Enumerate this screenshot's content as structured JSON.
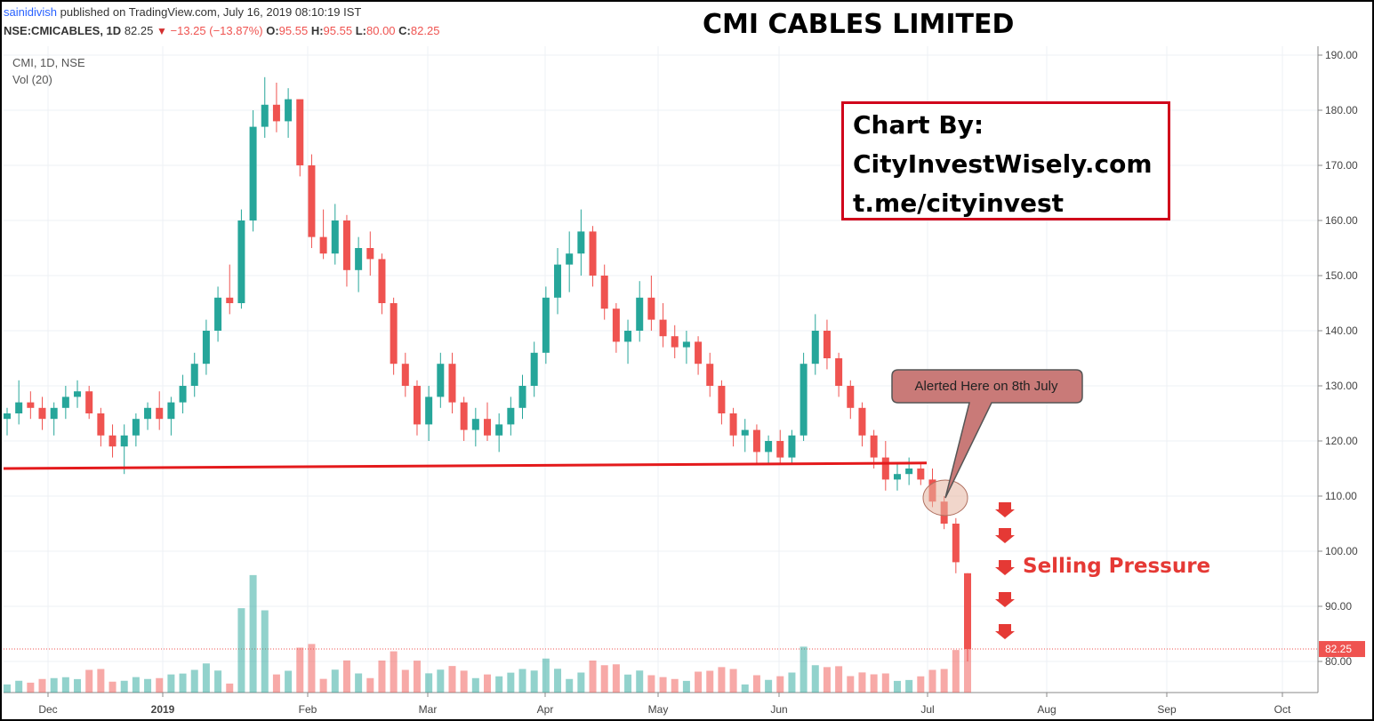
{
  "header": {
    "user": "sainidivish",
    "published_text": "published on TradingView.com, July 16, 2019 08:10:19 IST",
    "symbol_line": "NSE:CMICABLES, 1D",
    "last": "82.25",
    "change": "−13.25 (−13.87%)",
    "o_label": "O:",
    "o_value": "95.55",
    "h_label": "H:",
    "h_value": "95.55",
    "l_label": "L:",
    "l_value": "80.00",
    "c_label": "C:",
    "c_value": "82.25"
  },
  "title": "CMI CABLES LIMITED",
  "legend": {
    "series": "CMI, 1D, NSE",
    "volume": "Vol (20)"
  },
  "credit": {
    "line1": "Chart By:",
    "line2": "CityInvestWisely.com",
    "line3": "t.me/cityinvest"
  },
  "callout": {
    "text": "Alerted Here on 8th July"
  },
  "annotation": {
    "selling": "Selling Pressure"
  },
  "colors": {
    "up": "#26a69a",
    "down": "#ef5350",
    "support_line": "#e41a1c",
    "annotation": "#e53935"
  },
  "chart_data": {
    "type": "candlestick",
    "title": "CMI CABLES LIMITED",
    "y_axis": {
      "side": "right",
      "range": [
        77,
        191
      ],
      "ticks": [
        "80.00",
        "90.00",
        "100.00",
        "110.00",
        "120.00",
        "130.00",
        "140.00",
        "150.00",
        "160.00",
        "170.00",
        "180.00",
        "190.00"
      ]
    },
    "x_axis": {
      "ticks": [
        "Dec",
        "2019",
        "Feb",
        "Mar",
        "Apr",
        "May",
        "Jun",
        "Jul",
        "Aug",
        "Sep",
        "Oct"
      ]
    },
    "last_price_label": "82.25",
    "support_line": {
      "start_value": 115,
      "end_value": 116
    },
    "ohlc_approx": [
      [
        124,
        126,
        121,
        125
      ],
      [
        125,
        131,
        123,
        127
      ],
      [
        127,
        129,
        124,
        126
      ],
      [
        126,
        128,
        122,
        124
      ],
      [
        124,
        127,
        121,
        126
      ],
      [
        126,
        130,
        124,
        128
      ],
      [
        128,
        131,
        126,
        129
      ],
      [
        129,
        130,
        124,
        125
      ],
      [
        125,
        126,
        119,
        121
      ],
      [
        121,
        123,
        117,
        119
      ],
      [
        119,
        123,
        114,
        121
      ],
      [
        121,
        125,
        119,
        124
      ],
      [
        124,
        127,
        122,
        126
      ],
      [
        126,
        129,
        122,
        124
      ],
      [
        124,
        128,
        121,
        127
      ],
      [
        127,
        132,
        125,
        130
      ],
      [
        130,
        136,
        128,
        134
      ],
      [
        134,
        142,
        132,
        140
      ],
      [
        140,
        148,
        138,
        146
      ],
      [
        146,
        152,
        143,
        145
      ],
      [
        145,
        162,
        144,
        160
      ],
      [
        160,
        180,
        158,
        177
      ],
      [
        177,
        186,
        175,
        181
      ],
      [
        181,
        185,
        176,
        178
      ],
      [
        178,
        184,
        175,
        182
      ],
      [
        182,
        181,
        168,
        170
      ],
      [
        170,
        172,
        155,
        157
      ],
      [
        157,
        162,
        153,
        154
      ],
      [
        154,
        163,
        152,
        160
      ],
      [
        160,
        161,
        148,
        151
      ],
      [
        151,
        157,
        147,
        155
      ],
      [
        155,
        158,
        150,
        153
      ],
      [
        153,
        154,
        143,
        145
      ],
      [
        145,
        146,
        132,
        134
      ],
      [
        134,
        136,
        128,
        130
      ],
      [
        130,
        131,
        121,
        123
      ],
      [
        123,
        130,
        120,
        128
      ],
      [
        128,
        136,
        126,
        134
      ],
      [
        134,
        136,
        125,
        127
      ],
      [
        127,
        128,
        120,
        122
      ],
      [
        122,
        126,
        119,
        124
      ],
      [
        124,
        127,
        120,
        121
      ],
      [
        121,
        125,
        118,
        123
      ],
      [
        123,
        128,
        121,
        126
      ],
      [
        126,
        132,
        124,
        130
      ],
      [
        130,
        138,
        128,
        136
      ],
      [
        136,
        148,
        134,
        146
      ],
      [
        146,
        155,
        143,
        152
      ],
      [
        152,
        158,
        147,
        154
      ],
      [
        154,
        162,
        150,
        158
      ],
      [
        158,
        159,
        148,
        150
      ],
      [
        150,
        152,
        142,
        144
      ],
      [
        144,
        145,
        136,
        138
      ],
      [
        138,
        142,
        134,
        140
      ],
      [
        140,
        149,
        138,
        146
      ],
      [
        146,
        150,
        140,
        142
      ],
      [
        142,
        145,
        137,
        139
      ],
      [
        139,
        141,
        135,
        137
      ],
      [
        137,
        140,
        134,
        138
      ],
      [
        138,
        139,
        132,
        134
      ],
      [
        134,
        136,
        128,
        130
      ],
      [
        130,
        131,
        123,
        125
      ],
      [
        125,
        126,
        119,
        121
      ],
      [
        121,
        124,
        118,
        122
      ],
      [
        122,
        123,
        116,
        118
      ],
      [
        118,
        121,
        116,
        120
      ],
      [
        120,
        122,
        116,
        117
      ],
      [
        117,
        122,
        116,
        121
      ],
      [
        121,
        136,
        120,
        134
      ],
      [
        134,
        143,
        132,
        140
      ],
      [
        140,
        142,
        133,
        135
      ],
      [
        135,
        136,
        128,
        130
      ],
      [
        130,
        131,
        124,
        126
      ],
      [
        126,
        127,
        119,
        121
      ],
      [
        121,
        122,
        115,
        117
      ],
      [
        117,
        120,
        111,
        113
      ],
      [
        113,
        116,
        111,
        114
      ],
      [
        114,
        117,
        112,
        115
      ],
      [
        115,
        116,
        112,
        113
      ],
      [
        113,
        115,
        108,
        109
      ],
      [
        109,
        110,
        104,
        105
      ],
      [
        105,
        106,
        96,
        98
      ],
      [
        96,
        96,
        80,
        82.25
      ]
    ]
  }
}
